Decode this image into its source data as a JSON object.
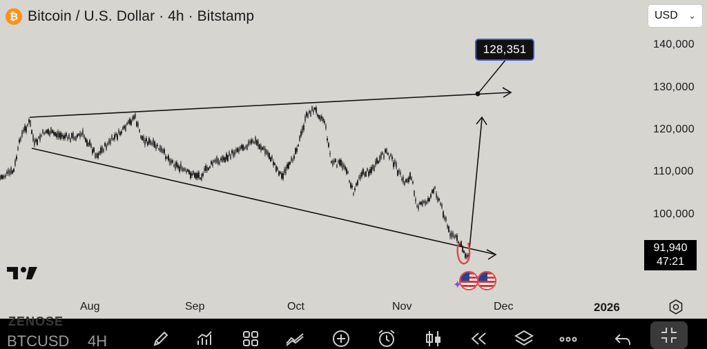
{
  "header": {
    "title": "Bitcoin / U.S. Dollar · 4h · Bitstamp",
    "logo_glyph": "₿"
  },
  "currency": {
    "selected": "USD"
  },
  "price_axis": {
    "labels": [
      "140,000",
      "130,000",
      "120,000",
      "110,000",
      "100,000"
    ]
  },
  "time_axis": {
    "labels": [
      "Aug",
      "Sep",
      "Oct",
      "Nov",
      "Dec"
    ],
    "year_label": "2026"
  },
  "annotation": {
    "target_label": "128,351"
  },
  "last_price": {
    "value": "91,940",
    "countdown": "47:21"
  },
  "bottom_bar": {
    "watermark": "ZENOSE",
    "ticker": "BTCUSD",
    "interval": "4H",
    "tools": [
      "pencil-icon",
      "indicators-icon",
      "layouts-icon",
      "compare-icon",
      "plus-circle-icon",
      "alarm-icon",
      "candles-icon",
      "replay-icon",
      "layers-icon",
      "more-icon",
      "undo-icon",
      "fullscreen-exit-icon"
    ]
  },
  "colors": {
    "background": "#d7d5d0",
    "bitcoin_orange": "#f7931a",
    "callout_border": "#3b5bd6",
    "highlight_red": "#e24545"
  }
}
